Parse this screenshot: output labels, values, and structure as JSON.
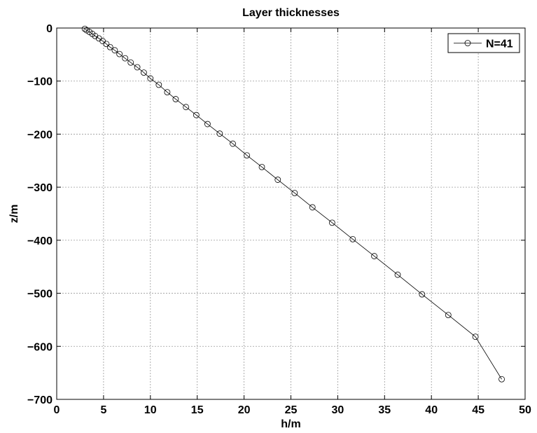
{
  "chart_data": {
    "type": "line",
    "title": "Layer thicknesses",
    "xlabel": "h/m",
    "ylabel": "z/m",
    "xlim": [
      0,
      50
    ],
    "ylim": [
      -700,
      0
    ],
    "x_ticks": [
      "0",
      "5",
      "10",
      "15",
      "20",
      "25",
      "30",
      "35",
      "40",
      "45",
      "50"
    ],
    "y_ticks": [
      "0",
      "−100",
      "−200",
      "−300",
      "−400",
      "−500",
      "−600",
      "−700"
    ],
    "grid": true,
    "legend_position": "top-right",
    "colors": {
      "line": "#000000",
      "grid": "#9a9a9a",
      "axes": "#000000",
      "background": "#ffffff"
    },
    "series": [
      {
        "name": "N=41",
        "marker": "circle",
        "points": [
          {
            "x": 3.0,
            "z": -1.5
          },
          {
            "x": 3.2,
            "z": -4.2
          },
          {
            "x": 3.5,
            "z": -7.5
          },
          {
            "x": 3.8,
            "z": -11
          },
          {
            "x": 4.1,
            "z": -15
          },
          {
            "x": 4.5,
            "z": -19.5
          },
          {
            "x": 4.9,
            "z": -24.5
          },
          {
            "x": 5.3,
            "z": -30
          },
          {
            "x": 5.7,
            "z": -36
          },
          {
            "x": 6.2,
            "z": -42
          },
          {
            "x": 6.7,
            "z": -49
          },
          {
            "x": 7.3,
            "z": -57
          },
          {
            "x": 7.9,
            "z": -65
          },
          {
            "x": 8.6,
            "z": -74
          },
          {
            "x": 9.3,
            "z": -84
          },
          {
            "x": 10.0,
            "z": -95
          },
          {
            "x": 10.9,
            "z": -107
          },
          {
            "x": 11.8,
            "z": -121
          },
          {
            "x": 12.7,
            "z": -134
          },
          {
            "x": 13.8,
            "z": -149
          },
          {
            "x": 14.9,
            "z": -164
          },
          {
            "x": 16.1,
            "z": -181
          },
          {
            "x": 17.4,
            "z": -199
          },
          {
            "x": 18.8,
            "z": -218
          },
          {
            "x": 20.3,
            "z": -240
          },
          {
            "x": 21.9,
            "z": -262
          },
          {
            "x": 23.6,
            "z": -286
          },
          {
            "x": 25.4,
            "z": -311
          },
          {
            "x": 27.3,
            "z": -338
          },
          {
            "x": 29.4,
            "z": -367
          },
          {
            "x": 31.6,
            "z": -398
          },
          {
            "x": 33.9,
            "z": -430
          },
          {
            "x": 36.4,
            "z": -465
          },
          {
            "x": 39.0,
            "z": -502
          },
          {
            "x": 41.8,
            "z": -541
          },
          {
            "x": 44.7,
            "z": -582
          },
          {
            "x": 47.5,
            "z": -662
          }
        ]
      }
    ]
  }
}
